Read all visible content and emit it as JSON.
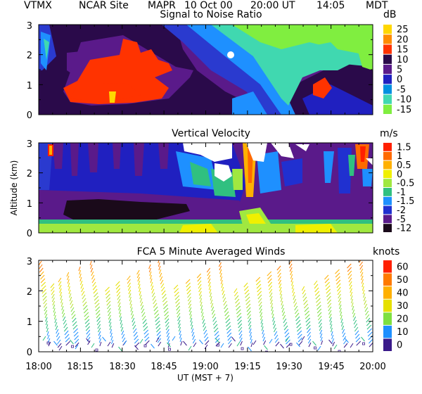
{
  "header": {
    "site": "VTMX",
    "org": "NCAR Site",
    "instrument": "MAPR",
    "date": "10 Oct 00",
    "ut_time": "20:00 UT",
    "local_time": "14:05",
    "tz": "MDT"
  },
  "chart_data": [
    {
      "type": "heatmap",
      "title": "Signal to Noise Ratio",
      "unit": "dB",
      "ylabel": "",
      "ylim": [
        0,
        3
      ],
      "y_ticks": [
        "0",
        "1",
        "2",
        "3"
      ],
      "colorbar": {
        "labels": [
          "25",
          "20",
          "15",
          "10",
          "5",
          "0",
          "-5",
          "-10",
          "-15"
        ],
        "colors": [
          "#ffd700",
          "#ff8c00",
          "#ff3300",
          "#2a0a4a",
          "#5a1a8a",
          "#2020c0",
          "#0090e0",
          "#40d8b0",
          "#80ee40"
        ]
      }
    },
    {
      "type": "heatmap",
      "title": "Vertical Velocity",
      "unit": "m/s",
      "ylabel": "Altitude (km)",
      "ylim": [
        0,
        3
      ],
      "y_ticks": [
        "0",
        "1",
        "2",
        "3"
      ],
      "colorbar": {
        "labels": [
          "1.5",
          "1",
          "0.5",
          "0",
          "-0.5",
          "-1",
          "-1.5",
          "-2",
          "-5",
          "-12"
        ],
        "colors": [
          "#ff2000",
          "#ff6a00",
          "#ffb000",
          "#f0f000",
          "#a0e840",
          "#30c080",
          "#1e90ff",
          "#2030d0",
          "#5a1a8a",
          "#1a0a1a"
        ]
      }
    },
    {
      "type": "scatter",
      "title": "FCA 5 Minute Averaged Winds",
      "unit": "knots",
      "ylabel": "",
      "xlabel": "UT  (MST + 7)",
      "ylim": [
        0,
        3
      ],
      "y_ticks": [
        "0",
        "1",
        "2",
        "3"
      ],
      "x_ticks": [
        "18:00",
        "18:15",
        "18:30",
        "18:45",
        "19:00",
        "19:15",
        "19:30",
        "19:45",
        "20:00"
      ],
      "colorbar": {
        "labels": [
          "60",
          "50",
          "40",
          "30",
          "20",
          "10",
          "0"
        ],
        "colors": [
          "#ff2000",
          "#ff7a00",
          "#ffb000",
          "#e6e000",
          "#7ee040",
          "#1e90ff",
          "#3a1a8a"
        ]
      }
    }
  ]
}
